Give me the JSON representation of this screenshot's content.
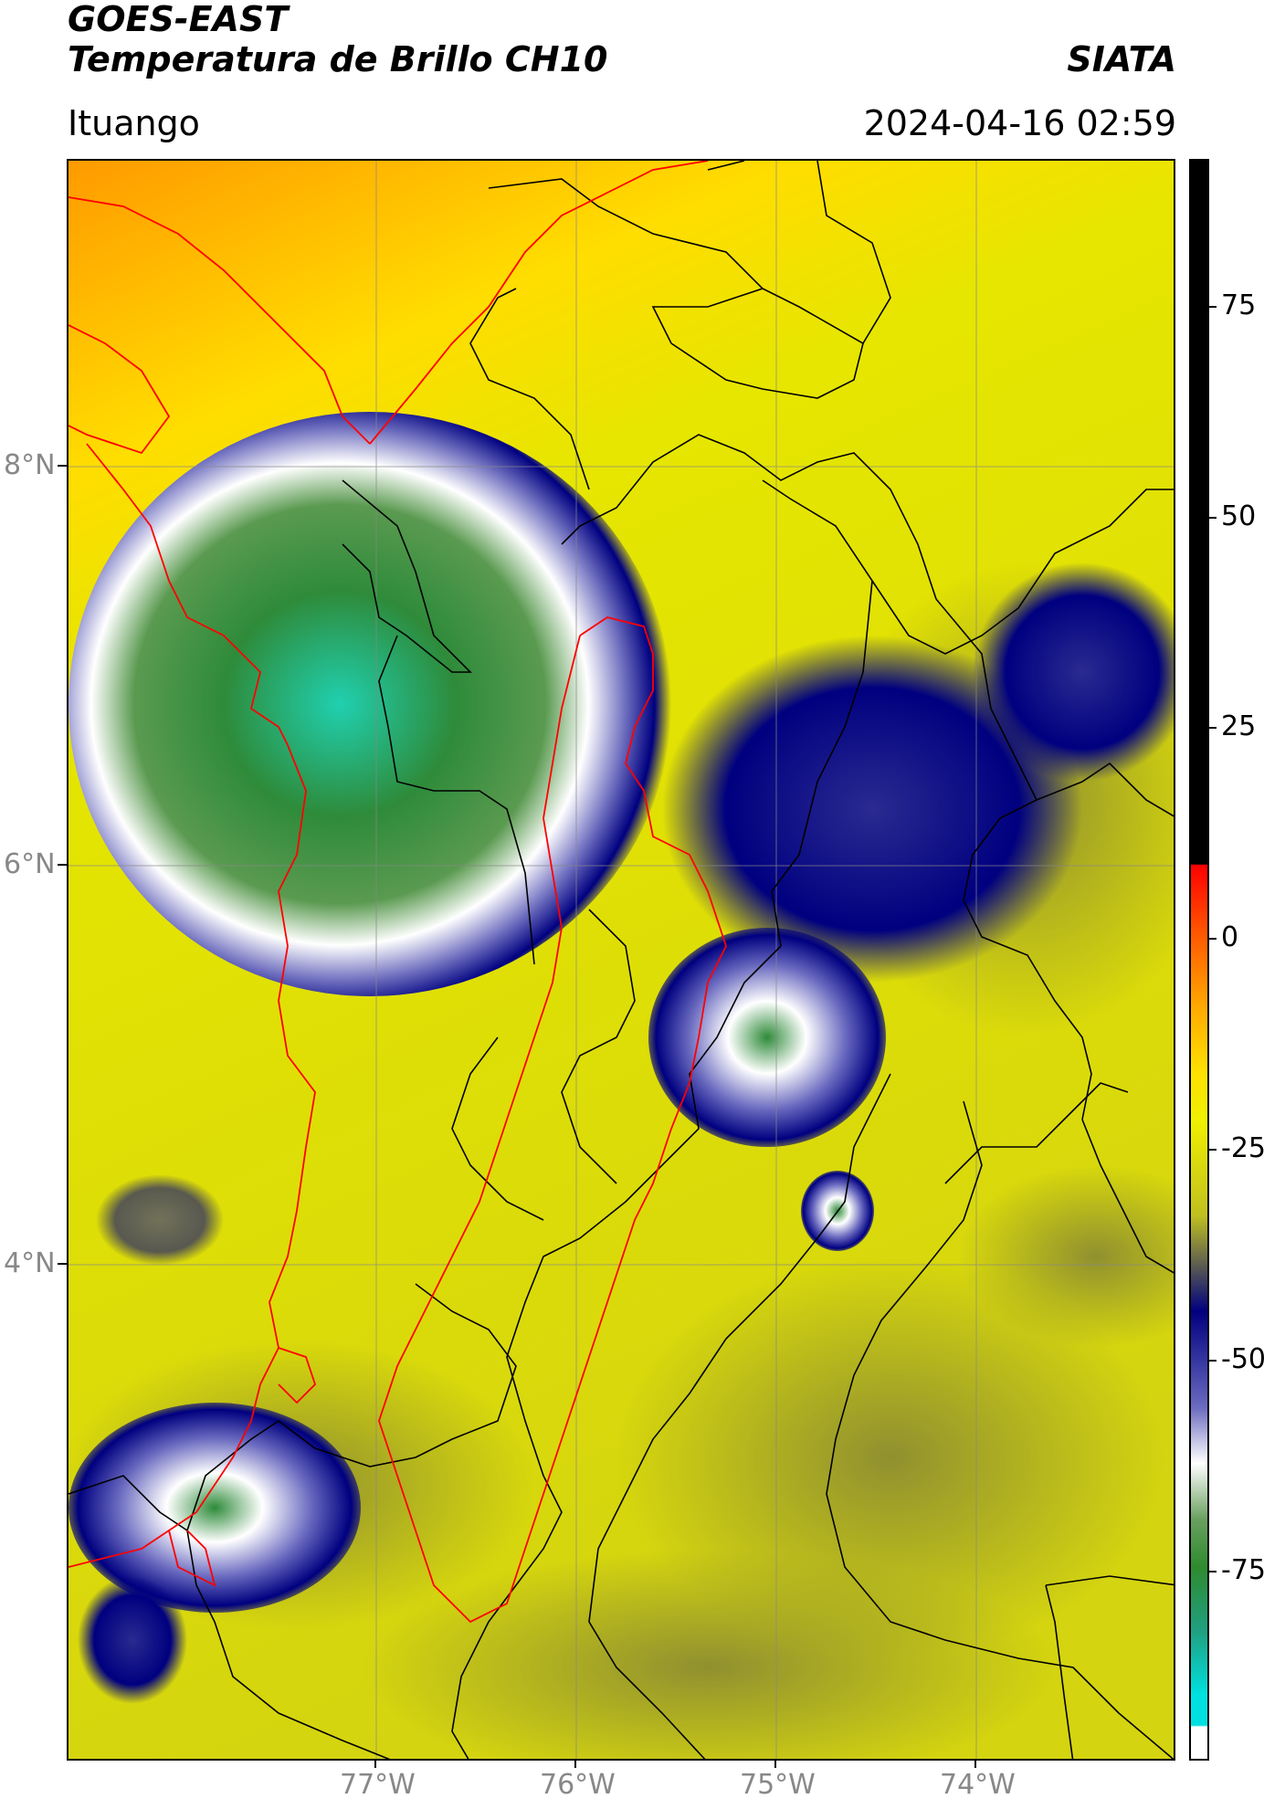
{
  "header": {
    "title_line1": "GOES-EAST",
    "title_line2": "Temperatura de Brillo CH10",
    "brand": "SIATA",
    "location": "Ituango",
    "datetime": "2024-04-16 02:59"
  },
  "map": {
    "lat_labels": [
      "8°N",
      "6°N",
      "4°N"
    ],
    "lon_labels": [
      "77°W",
      "76°W",
      "75°W",
      "74°W"
    ]
  },
  "colorbar": {
    "tick_labels": [
      "75",
      "50",
      "25",
      "0",
      "-25",
      "-50",
      "-75"
    ],
    "colors": {
      "hot": "#000000",
      "warm": "#ff0000",
      "mid": "#ffa000",
      "yellow": "#f0f000",
      "olive": "#808020",
      "blue": "#000080",
      "white": "#ffffff",
      "green": "#2e8b2e",
      "cyan": "#00e0e0"
    }
  },
  "colors": {
    "department_border": "#ff0000",
    "municipal_border": "#000000",
    "grid": "#888888"
  }
}
